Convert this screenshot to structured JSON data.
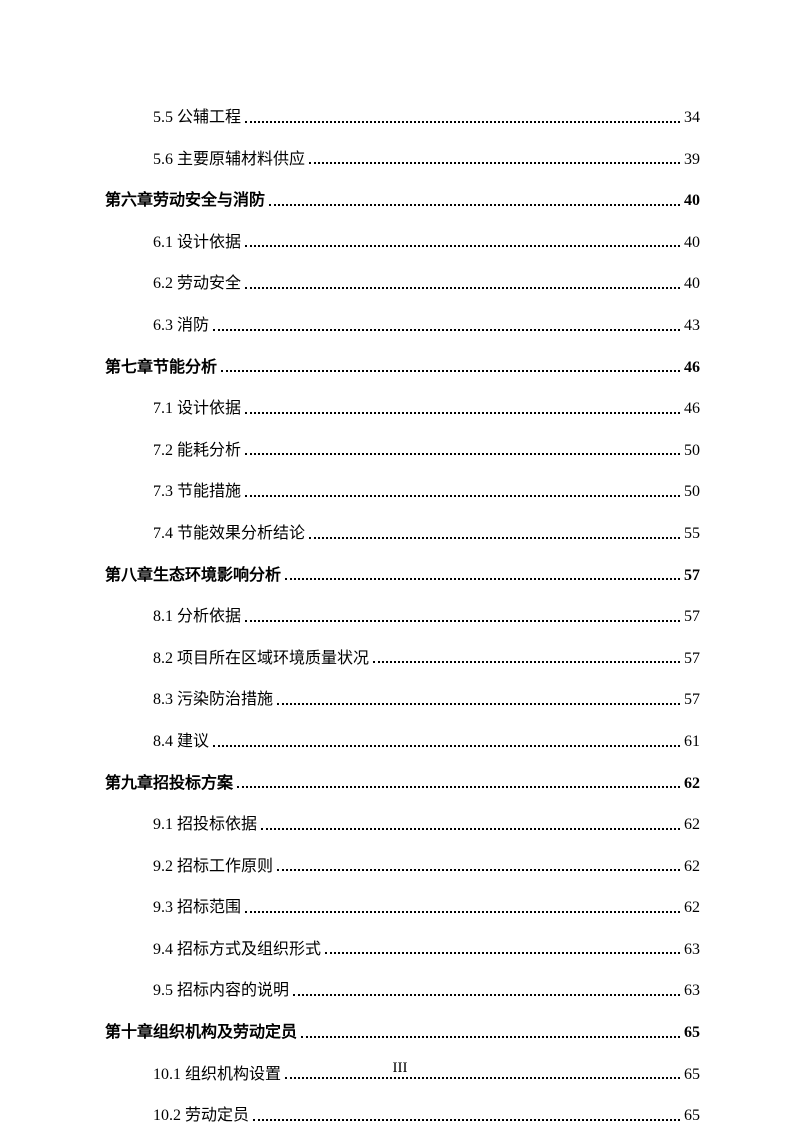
{
  "entries": [
    {
      "level": "section",
      "label": "5.5 公辅工程",
      "page": "34"
    },
    {
      "level": "section",
      "label": "5.6 主要原辅材料供应",
      "page": "39"
    },
    {
      "level": "chapter",
      "label": "第六章劳动安全与消防",
      "page": "40"
    },
    {
      "level": "section",
      "label": "6.1 设计依据",
      "page": "40"
    },
    {
      "level": "section",
      "label": "6.2 劳动安全",
      "page": "40"
    },
    {
      "level": "section",
      "label": "6.3 消防",
      "page": "43"
    },
    {
      "level": "chapter",
      "label": "第七章节能分析",
      "page": "46"
    },
    {
      "level": "section",
      "label": "7.1 设计依据",
      "page": "46"
    },
    {
      "level": "section",
      "label": "7.2 能耗分析",
      "page": "50"
    },
    {
      "level": "section",
      "label": "7.3 节能措施",
      "page": "50"
    },
    {
      "level": "section",
      "label": "7.4 节能效果分析结论",
      "page": "55"
    },
    {
      "level": "chapter",
      "label": "第八章生态环境影响分析",
      "page": "57"
    },
    {
      "level": "section",
      "label": "8.1 分析依据",
      "page": "57"
    },
    {
      "level": "section",
      "label": "8.2 项目所在区域环境质量状况",
      "page": "57"
    },
    {
      "level": "section",
      "label": "8.3 污染防治措施",
      "page": "57"
    },
    {
      "level": "section",
      "label": "8.4 建议",
      "page": "61"
    },
    {
      "level": "chapter",
      "label": "第九章招投标方案",
      "page": "62"
    },
    {
      "level": "section",
      "label": "9.1 招投标依据",
      "page": "62"
    },
    {
      "level": "section",
      "label": "9.2 招标工作原则",
      "page": "62"
    },
    {
      "level": "section",
      "label": "9.3 招标范围",
      "page": "62"
    },
    {
      "level": "section",
      "label": "9.4 招标方式及组织形式",
      "page": "63"
    },
    {
      "level": "section",
      "label": "9.5 招标内容的说明",
      "page": "63"
    },
    {
      "level": "chapter",
      "label": "第十章组织机构及劳动定员",
      "page": "65"
    },
    {
      "level": "section",
      "label": "10.1 组织机构设置",
      "page": "65"
    },
    {
      "level": "section",
      "label": "10.2 劳动定员",
      "page": "65"
    }
  ],
  "pageNumber": "III"
}
